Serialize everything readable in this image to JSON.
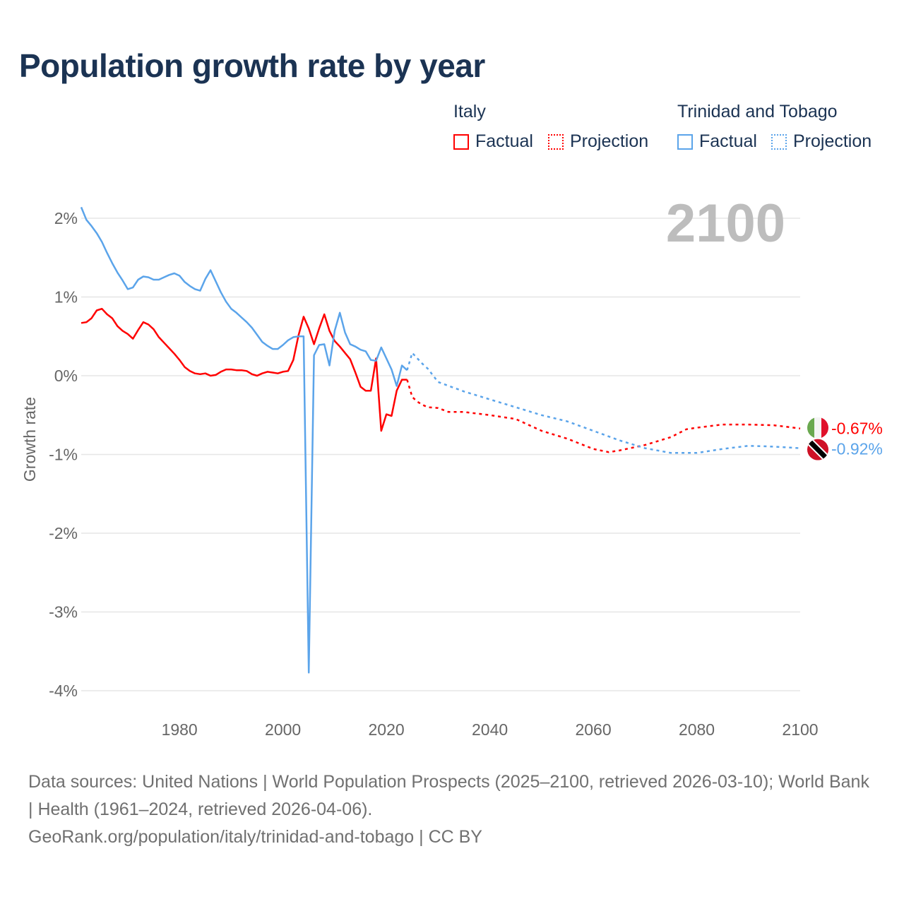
{
  "title": "Population growth rate by year",
  "legend": {
    "groups": [
      {
        "name": "Italy",
        "color": "#ff0000",
        "items": [
          "Factual",
          "Projection"
        ]
      },
      {
        "name": "Trinidad and Tobago",
        "color": "#5ba4ea",
        "items": [
          "Factual",
          "Projection"
        ]
      }
    ]
  },
  "footer": {
    "sources": "Data sources: United Nations | World Population Prospects (2025–2100, retrieved 2026-03-10); World Bank | Health (1961–2024, retrieved 2026-04-06).",
    "link": "GeoRank.org/population/italy/trinidad-and-tobago | CC BY"
  },
  "chart_data": {
    "type": "line",
    "title": "Population growth rate by year",
    "ylabel": "Growth rate",
    "xlabel": "",
    "year_label": "2100",
    "xlim": [
      1961,
      2100
    ],
    "ylim": [
      -4.4,
      2.3
    ],
    "x_ticks": [
      1980,
      2000,
      2020,
      2040,
      2060,
      2080,
      2100
    ],
    "y_ticks": [
      2,
      1,
      0,
      -1,
      -2,
      -3,
      -4
    ],
    "y_tick_labels": [
      "2%",
      "1%",
      "0%",
      "-1%",
      "-2%",
      "-3%",
      "-4%"
    ],
    "grid": true,
    "series": [
      {
        "name": "Italy",
        "color": "#ff0000",
        "end_label": "-0.67%",
        "factual": {
          "x": [
            1961,
            1962,
            1963,
            1964,
            1965,
            1966,
            1967,
            1968,
            1969,
            1970,
            1971,
            1972,
            1973,
            1974,
            1975,
            1976,
            1977,
            1978,
            1979,
            1980,
            1981,
            1982,
            1983,
            1984,
            1985,
            1986,
            1987,
            1988,
            1989,
            1990,
            1991,
            1992,
            1993,
            1994,
            1995,
            1996,
            1997,
            1998,
            1999,
            2000,
            2001,
            2002,
            2003,
            2004,
            2005,
            2006,
            2007,
            2008,
            2009,
            2010,
            2011,
            2012,
            2013,
            2014,
            2015,
            2016,
            2017,
            2018,
            2019,
            2020,
            2021,
            2022,
            2023,
            2024
          ],
          "y": [
            0.67,
            0.68,
            0.73,
            0.83,
            0.85,
            0.78,
            0.73,
            0.63,
            0.57,
            0.53,
            0.47,
            0.58,
            0.68,
            0.65,
            0.59,
            0.49,
            0.42,
            0.35,
            0.28,
            0.2,
            0.11,
            0.06,
            0.03,
            0.02,
            0.03,
            0.0,
            0.01,
            0.05,
            0.08,
            0.08,
            0.07,
            0.07,
            0.06,
            0.02,
            0.0,
            0.03,
            0.05,
            0.04,
            0.03,
            0.05,
            0.06,
            0.2,
            0.51,
            0.75,
            0.6,
            0.4,
            0.6,
            0.78,
            0.57,
            0.44,
            0.37,
            0.29,
            0.21,
            0.04,
            -0.14,
            -0.19,
            -0.19,
            0.22,
            -0.7,
            -0.49,
            -0.51,
            -0.19,
            -0.05,
            -0.05
          ]
        },
        "projection": {
          "x": [
            2024,
            2025,
            2026,
            2027,
            2028,
            2030,
            2032,
            2035,
            2040,
            2045,
            2050,
            2055,
            2060,
            2063,
            2065,
            2070,
            2075,
            2078,
            2080,
            2085,
            2090,
            2095,
            2100
          ],
          "y": [
            -0.05,
            -0.27,
            -0.33,
            -0.37,
            -0.4,
            -0.41,
            -0.46,
            -0.46,
            -0.5,
            -0.55,
            -0.7,
            -0.8,
            -0.93,
            -0.97,
            -0.95,
            -0.88,
            -0.78,
            -0.68,
            -0.66,
            -0.62,
            -0.62,
            -0.63,
            -0.67
          ]
        }
      },
      {
        "name": "Trinidad and Tobago",
        "color": "#5ba4ea",
        "end_label": "-0.92%",
        "factual": {
          "x": [
            1961,
            1962,
            1963,
            1964,
            1965,
            1966,
            1967,
            1968,
            1969,
            1970,
            1971,
            1972,
            1973,
            1974,
            1975,
            1976,
            1977,
            1978,
            1979,
            1980,
            1981,
            1982,
            1983,
            1984,
            1985,
            1986,
            1987,
            1988,
            1989,
            1990,
            1991,
            1992,
            1993,
            1994,
            1995,
            1996,
            1997,
            1998,
            1999,
            2000,
            2001,
            2002,
            2003,
            2004,
            2005,
            2006,
            2007,
            2008,
            2009,
            2010,
            2011,
            2012,
            2013,
            2014,
            2015,
            2016,
            2017,
            2018,
            2019,
            2020,
            2021,
            2022,
            2023,
            2024
          ],
          "y": [
            2.14,
            1.98,
            1.9,
            1.81,
            1.7,
            1.56,
            1.43,
            1.31,
            1.21,
            1.1,
            1.12,
            1.22,
            1.26,
            1.25,
            1.22,
            1.22,
            1.25,
            1.28,
            1.3,
            1.27,
            1.19,
            1.14,
            1.1,
            1.08,
            1.23,
            1.34,
            1.2,
            1.06,
            0.94,
            0.85,
            0.8,
            0.74,
            0.68,
            0.61,
            0.52,
            0.43,
            0.38,
            0.34,
            0.34,
            0.39,
            0.45,
            0.49,
            0.5,
            0.5,
            -3.77,
            0.26,
            0.39,
            0.4,
            0.13,
            0.57,
            0.8,
            0.55,
            0.4,
            0.37,
            0.33,
            0.31,
            0.2,
            0.19,
            0.36,
            0.22,
            0.08,
            -0.13,
            0.13,
            0.07
          ]
        },
        "projection": {
          "x": [
            2024,
            2025,
            2026,
            2027,
            2028,
            2030,
            2035,
            2040,
            2045,
            2050,
            2055,
            2060,
            2065,
            2070,
            2075,
            2080,
            2085,
            2090,
            2095,
            2100
          ],
          "y": [
            0.07,
            0.29,
            0.22,
            0.15,
            0.09,
            -0.08,
            -0.2,
            -0.3,
            -0.4,
            -0.5,
            -0.58,
            -0.7,
            -0.82,
            -0.92,
            -0.98,
            -0.98,
            -0.93,
            -0.89,
            -0.9,
            -0.92
          ]
        }
      }
    ]
  }
}
